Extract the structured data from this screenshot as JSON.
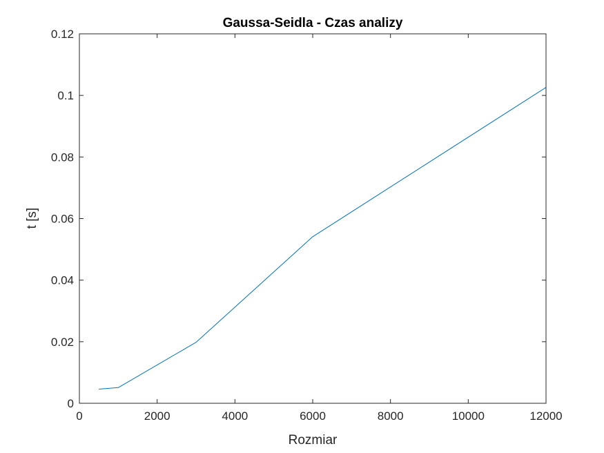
{
  "chart_data": {
    "type": "line",
    "title": "Gaussa-Seidla - Czas analizy",
    "xlabel": "Rozmiar",
    "ylabel": "t [s]",
    "xlim": [
      0,
      12000
    ],
    "ylim": [
      0,
      0.12
    ],
    "grid": false,
    "xticks": [
      0,
      2000,
      4000,
      6000,
      8000,
      10000,
      12000
    ],
    "xtick_labels": [
      "0",
      "2000",
      "4000",
      "6000",
      "8000",
      "10000",
      "12000"
    ],
    "yticks": [
      0,
      0.02,
      0.04,
      0.06,
      0.08,
      0.1,
      0.12
    ],
    "ytick_labels": [
      "0",
      "0.02",
      "0.04",
      "0.06",
      "0.08",
      "0.1",
      "0.12"
    ],
    "series": [
      {
        "color": "#0072BD",
        "x": [
          500,
          1000,
          3000,
          6000,
          12000
        ],
        "y": [
          0.0046,
          0.0051,
          0.0198,
          0.0541,
          0.1026
        ]
      }
    ]
  }
}
